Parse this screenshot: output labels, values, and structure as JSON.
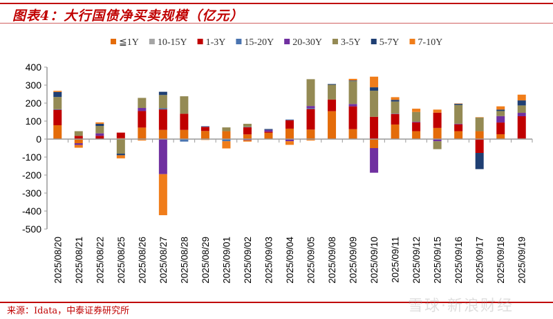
{
  "title": "图表4：大行国债净买卖规模（亿元）",
  "source": "来源：Idata，中泰证券研究所",
  "watermark": "雪球·新浪财经",
  "chart_data": {
    "type": "bar",
    "stacked": true,
    "title": "",
    "xlabel": "",
    "ylabel": "",
    "ylim": [
      -500,
      400
    ],
    "yticks": [
      400,
      300,
      200,
      100,
      0,
      -100,
      -200,
      -300,
      -400,
      -500
    ],
    "grid": false,
    "legend_position": "top",
    "categories": [
      "2025/08/20",
      "2025/08/21",
      "2025/08/22",
      "2025/08/25",
      "2025/08/26",
      "2025/08/27",
      "2025/08/28",
      "2025/08/29",
      "2025/09/01",
      "2025/09/02",
      "2025/09/03",
      "2025/09/04",
      "2025/09/05",
      "2025/09/08",
      "2025/09/09",
      "2025/09/10",
      "2025/09/11",
      "2025/09/12",
      "2025/09/15",
      "2025/09/16",
      "2025/09/17",
      "2025/09/18",
      "2025/09/19"
    ],
    "series": [
      {
        "name": "≦1Y",
        "color": "#e46c0a",
        "values": [
          77,
          -23,
          0,
          5,
          64,
          51,
          51,
          45,
          44,
          26,
          35,
          58,
          53,
          155,
          55,
          -50,
          81,
          44,
          62,
          44,
          44,
          27,
          3
        ]
      },
      {
        "name": "10-15Y",
        "color": "#a5a5a5",
        "values": [
          0,
          0,
          0,
          0,
          0,
          0,
          0,
          0,
          0,
          0,
          0,
          0,
          0,
          0,
          0,
          0,
          0,
          0,
          0,
          0,
          0,
          0,
          0
        ]
      },
      {
        "name": "1-3Y",
        "color": "#c00000",
        "values": [
          86,
          18,
          18,
          31,
          92,
          114,
          90,
          23,
          0,
          40,
          6,
          47,
          114,
          65,
          127,
          124,
          58,
          49,
          85,
          38,
          -77,
          65,
          124
        ]
      },
      {
        "name": "15-20Y",
        "color": "#4a74b0",
        "values": [
          3,
          0,
          0,
          0,
          0,
          6,
          -14,
          4,
          -12,
          2,
          0,
          4,
          5,
          0,
          0,
          0,
          0,
          0,
          0,
          0,
          0,
          0,
          0
        ]
      },
      {
        "name": "20-30Y",
        "color": "#7030a0",
        "values": [
          0,
          -10,
          14,
          0,
          17,
          -195,
          0,
          0,
          0,
          -6,
          10,
          -12,
          12,
          0,
          13,
          -137,
          2,
          3,
          -12,
          3,
          0,
          36,
          19
        ]
      },
      {
        "name": "3-5Y",
        "color": "#948a54",
        "values": [
          68,
          26,
          41,
          -81,
          56,
          74,
          97,
          0,
          21,
          17,
          0,
          0,
          149,
          82,
          127,
          145,
          68,
          55,
          -44,
          105,
          76,
          28,
          41
        ]
      },
      {
        "name": "5-7Y",
        "color": "#1f3f73",
        "values": [
          28,
          0,
          12,
          -9,
          0,
          18,
          0,
          0,
          0,
          0,
          5,
          0,
          0,
          4,
          4,
          19,
          9,
          0,
          0,
          6,
          -90,
          8,
          28
        ]
      },
      {
        "name": "7-10Y",
        "color": "#f07d1a",
        "values": [
          6,
          -15,
          8,
          -17,
          -8,
          -228,
          0,
          -5,
          -40,
          -8,
          0,
          -20,
          -8,
          0,
          9,
          59,
          15,
          18,
          17,
          2,
          2,
          18,
          32
        ]
      }
    ]
  }
}
